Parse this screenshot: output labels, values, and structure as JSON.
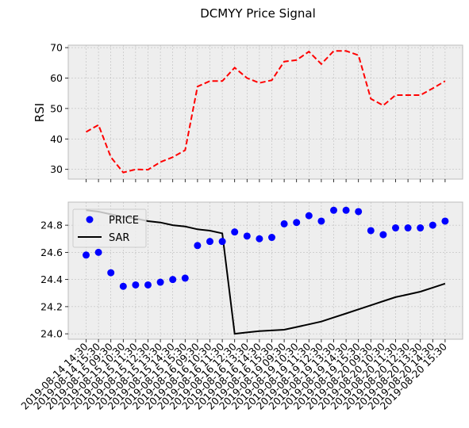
{
  "chart_data": {
    "title": "DCMYY Price Signal",
    "x_labels": [
      "2019-08-14 14:30",
      "2019-08-14 15:30",
      "2019-08-15 09:30",
      "2019-08-15 10:30",
      "2019-08-15 11:30",
      "2019-08-15 12:30",
      "2019-08-15 13:30",
      "2019-08-15 14:30",
      "2019-08-15 15:30",
      "2019-08-16 09:30",
      "2019-08-16 10:30",
      "2019-08-16 11:30",
      "2019-08-16 12:30",
      "2019-08-16 13:30",
      "2019-08-16 14:30",
      "2019-08-16 15:30",
      "2019-08-19 09:30",
      "2019-08-19 10:30",
      "2019-08-19 11:30",
      "2019-08-19 12:30",
      "2019-08-19 13:30",
      "2019-08-19 14:30",
      "2019-08-19 15:30",
      "2019-08-20 09:30",
      "2019-08-20 10:30",
      "2019-08-20 11:30",
      "2019-08-20 12:30",
      "2019-08-20 13:30",
      "2019-08-20 14:30",
      "2019-08-20 15:30"
    ],
    "panels": [
      {
        "type": "line",
        "ylabel": "RSI",
        "ylim": [
          26.8,
          70.8
        ],
        "yticks": [
          30,
          40,
          50,
          60,
          70
        ],
        "grid": true,
        "series": [
          {
            "color": "#ff0000",
            "style": "dashed",
            "values": [
              42.3,
              44.6,
              34.0,
              29.0,
              30.0,
              29.9,
              32.4,
              34.0,
              36.3,
              57.2,
              59.0,
              59.0,
              63.4,
              60.0,
              58.4,
              59.3,
              65.4,
              65.9,
              68.7,
              64.6,
              68.9,
              68.9,
              67.5,
              53.2,
              51.0,
              54.4,
              54.4,
              54.4,
              56.6,
              59.0
            ]
          }
        ]
      },
      {
        "type": "line+scatter",
        "ylim": [
          23.96,
          24.97
        ],
        "yticks": [
          24.0,
          24.2,
          24.4,
          24.6,
          24.8
        ],
        "grid": true,
        "legend_position": "top-left",
        "series": [
          {
            "name": "PRICE",
            "type": "scatter",
            "color": "#0000ff",
            "values": [
              24.58,
              24.6,
              24.45,
              24.35,
              24.36,
              24.36,
              24.38,
              24.4,
              24.41,
              24.65,
              24.68,
              24.68,
              24.75,
              24.72,
              24.7,
              24.71,
              24.81,
              24.82,
              24.87,
              24.83,
              24.91,
              24.91,
              24.9,
              24.76,
              24.73,
              24.78,
              24.78,
              24.78,
              24.8,
              24.83
            ]
          },
          {
            "name": "SAR",
            "type": "line",
            "color": "#000000",
            "values": [
              24.91,
              24.9,
              24.88,
              24.86,
              24.85,
              24.83,
              24.82,
              24.8,
              24.79,
              24.77,
              24.76,
              24.74,
              24.0,
              24.01,
              24.02,
              24.025,
              24.03,
              24.05,
              24.07,
              24.09,
              24.12,
              24.15,
              24.18,
              24.21,
              24.24,
              24.27,
              24.29,
              24.31,
              24.34,
              24.37
            ]
          }
        ]
      }
    ]
  }
}
